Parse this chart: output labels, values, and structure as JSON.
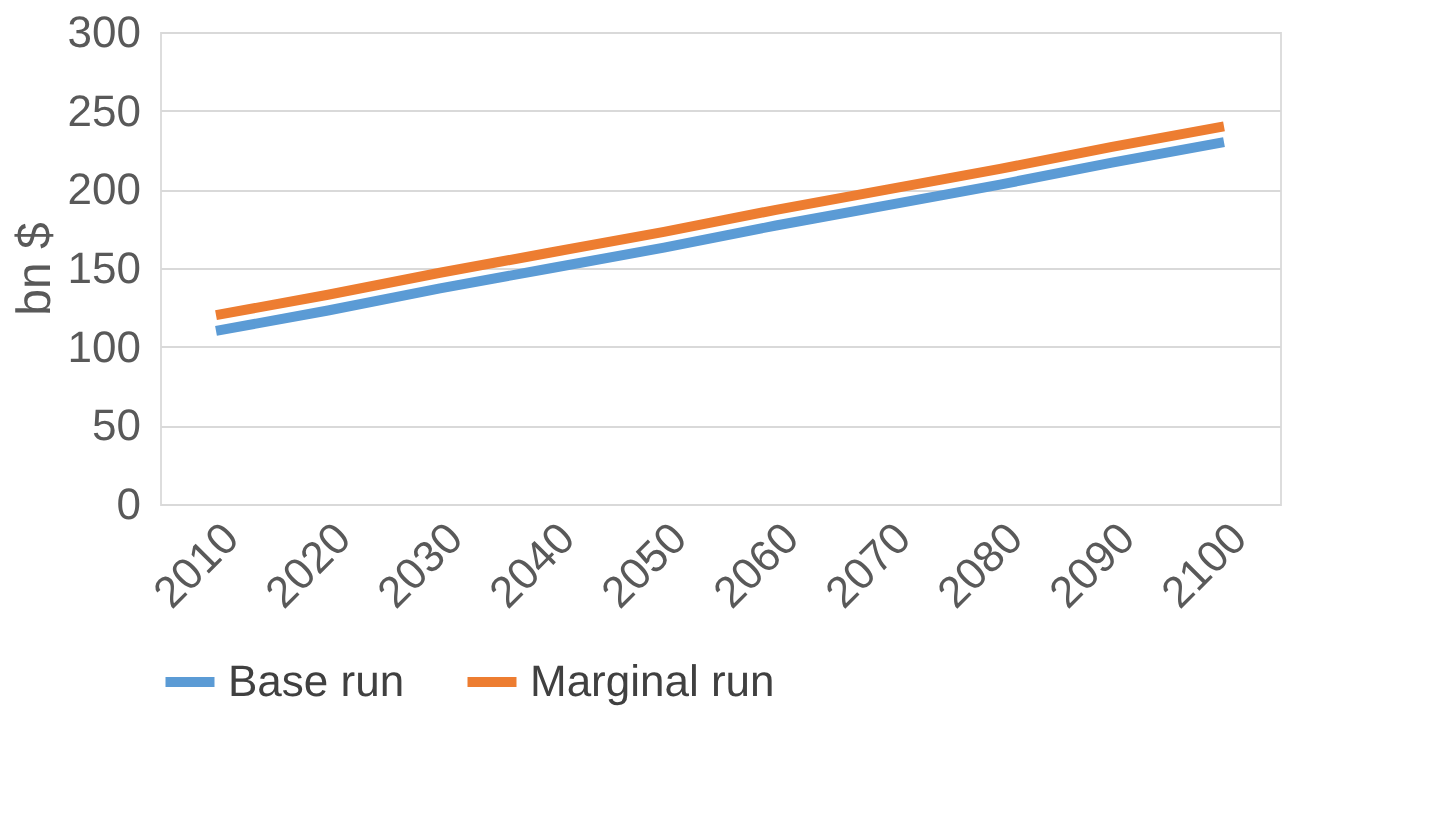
{
  "chart_data": {
    "type": "line",
    "ylabel": "bn $",
    "categories": [
      "2010",
      "2020",
      "2030",
      "2040",
      "2050",
      "2060",
      "2070",
      "2080",
      "2090",
      "2100"
    ],
    "series": [
      {
        "name": "Base run",
        "color": "#5b9bd5",
        "values": [
          110,
          123,
          137,
          150,
          163,
          177,
          190,
          203,
          217,
          230
        ]
      },
      {
        "name": "Marginal run",
        "color": "#ed7d31",
        "values": [
          120,
          133,
          147,
          160,
          173,
          187,
          200,
          213,
          227,
          240
        ]
      }
    ],
    "ylim": [
      0,
      300
    ],
    "yticks": [
      0,
      50,
      100,
      150,
      200,
      250,
      300
    ],
    "grid": "y",
    "legend": "bottom",
    "marker": "none",
    "line_style": "solid"
  }
}
